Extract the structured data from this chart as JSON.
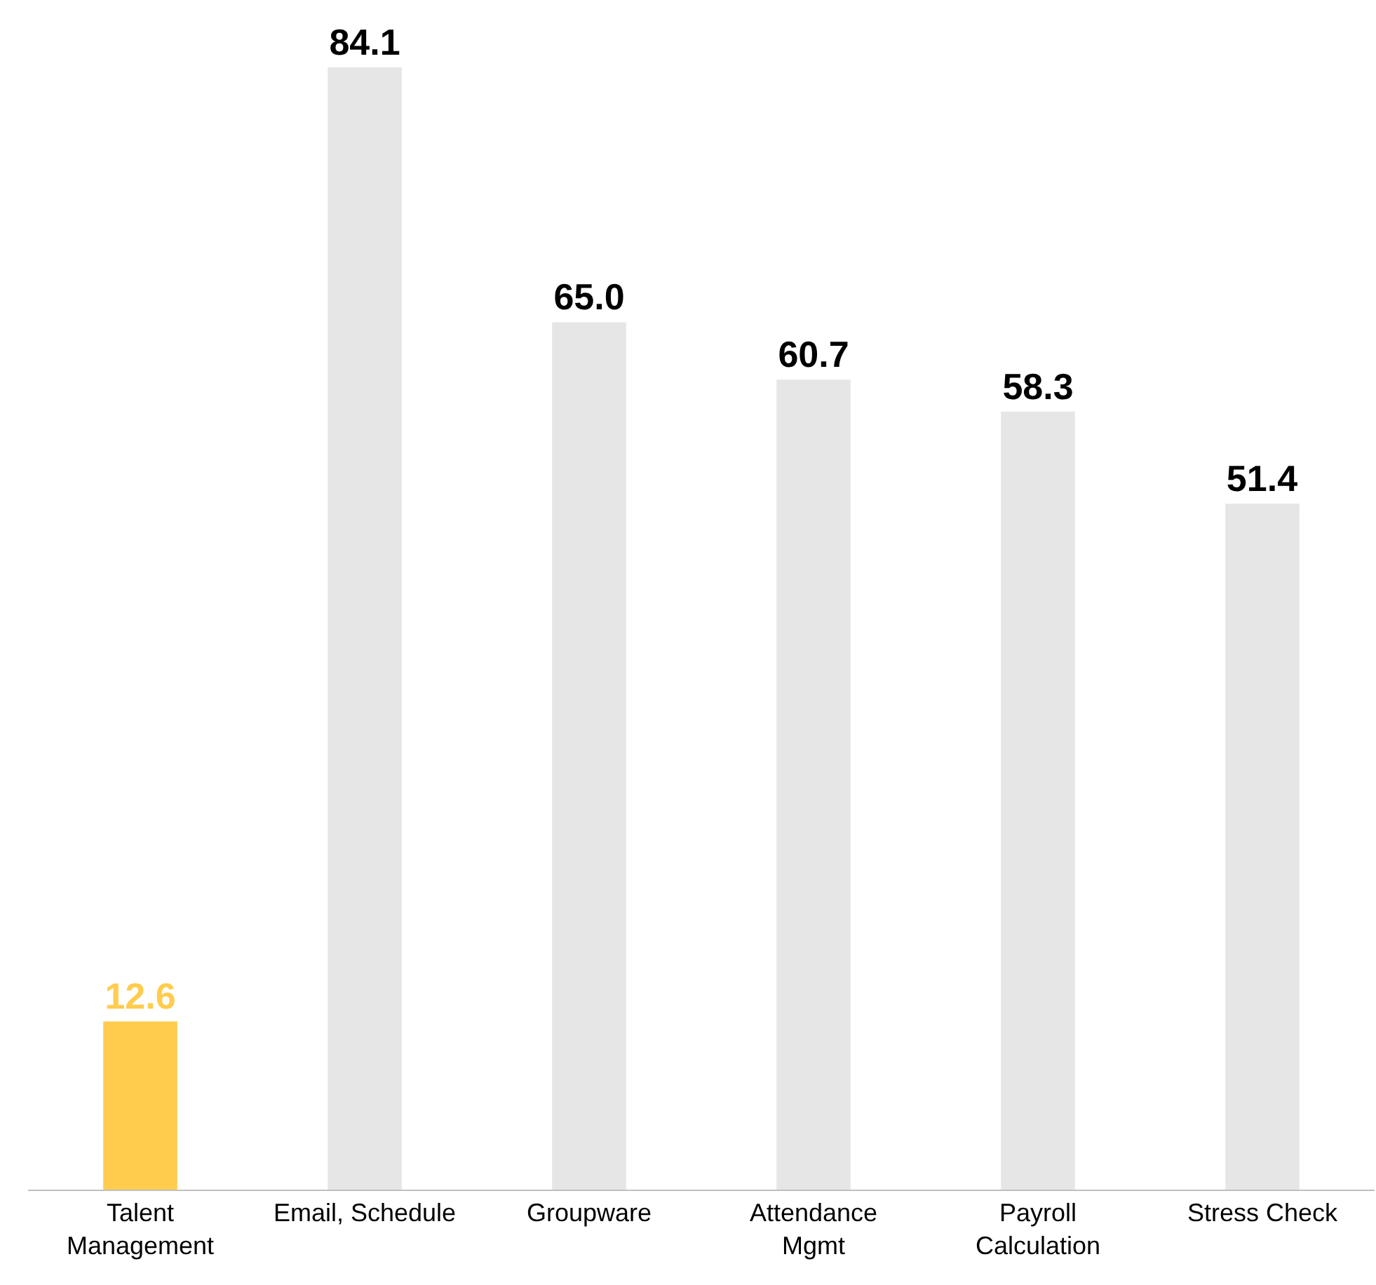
{
  "chart_data": {
    "type": "bar",
    "categories": [
      "Talent\nManagement",
      "Email, Schedule",
      "Groupware",
      "Attendance\nMgmt",
      "Payroll\nCalculation",
      "Stress Check"
    ],
    "values": [
      12.6,
      84.1,
      65.0,
      60.7,
      58.3,
      51.4
    ],
    "colors": [
      "#ffcc4d",
      "#e6e6e6",
      "#e6e6e6",
      "#e6e6e6",
      "#e6e6e6",
      "#e6e6e6"
    ],
    "value_labels": [
      "12.6",
      "84.1",
      "65.0",
      "60.7",
      "58.3",
      "51.4"
    ],
    "legend": false
  }
}
